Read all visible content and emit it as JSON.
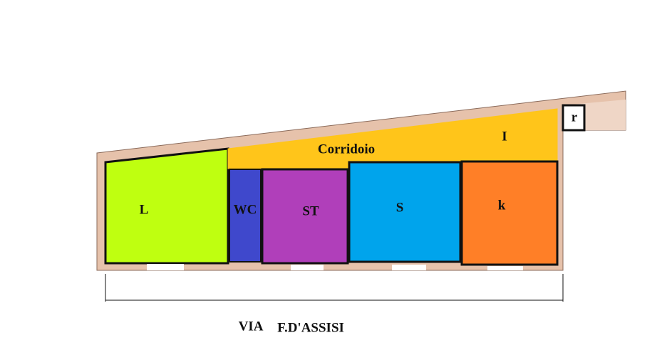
{
  "rooms": [
    {
      "label": "L"
    },
    {
      "label": "WC"
    },
    {
      "label": "ST"
    },
    {
      "label": "S"
    },
    {
      "label": "k"
    },
    {
      "label": "Corridoio"
    },
    {
      "label": "I"
    },
    {
      "label": "r"
    }
  ],
  "street": {
    "prefix": "VIA",
    "name": "F.D'ASSISI"
  }
}
